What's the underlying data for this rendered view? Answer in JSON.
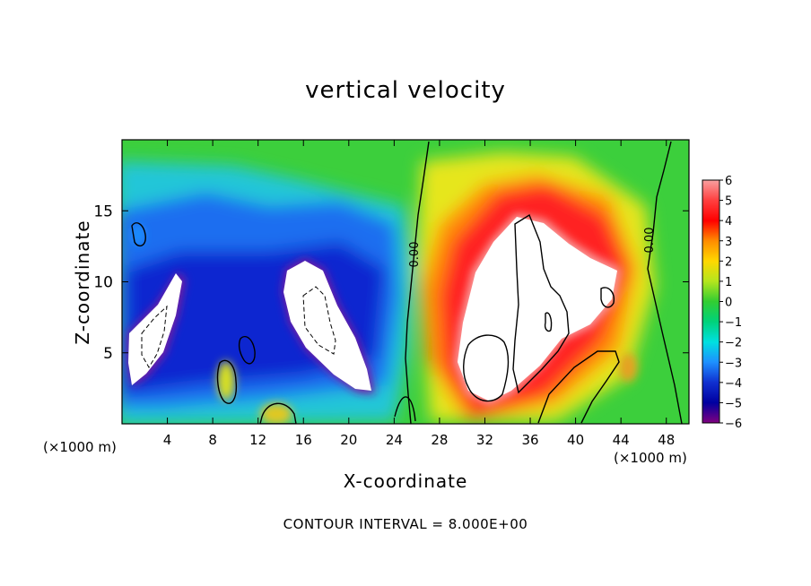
{
  "chart_data": {
    "type": "heatmap",
    "title": "vertical velocity",
    "xlabel": "X-coordinate",
    "ylabel": "Z-coordinate",
    "x_units_left": "(×1000 m)",
    "x_units_right": "(×1000 m)",
    "xlim": [
      0,
      50
    ],
    "ylim": [
      0,
      20
    ],
    "x_ticks": [
      "4",
      "8",
      "12",
      "16",
      "20",
      "24",
      "28",
      "32",
      "36",
      "40",
      "44",
      "48"
    ],
    "y_ticks": [
      "5",
      "10",
      "15"
    ],
    "colorbar": {
      "min": -6,
      "max": 6,
      "labels": [
        "6",
        "5",
        "4",
        "3",
        "2",
        "1",
        "0",
        "−1",
        "−2",
        "−3",
        "−4",
        "−5",
        "−6"
      ],
      "colors": [
        "#f8a0a0",
        "#ff4040",
        "#ff0000",
        "#ff8c00",
        "#ffd700",
        "#b4e61e",
        "#32cd32",
        "#00d27a",
        "#00e0e0",
        "#1e90ff",
        "#1030d0",
        "#0000a0",
        "#800080"
      ]
    },
    "contour_labels": [
      "0.00",
      "0.00"
    ],
    "contour_interval_text": "CONTOUR INTERVAL = 8.000E+00",
    "grid": false
  }
}
